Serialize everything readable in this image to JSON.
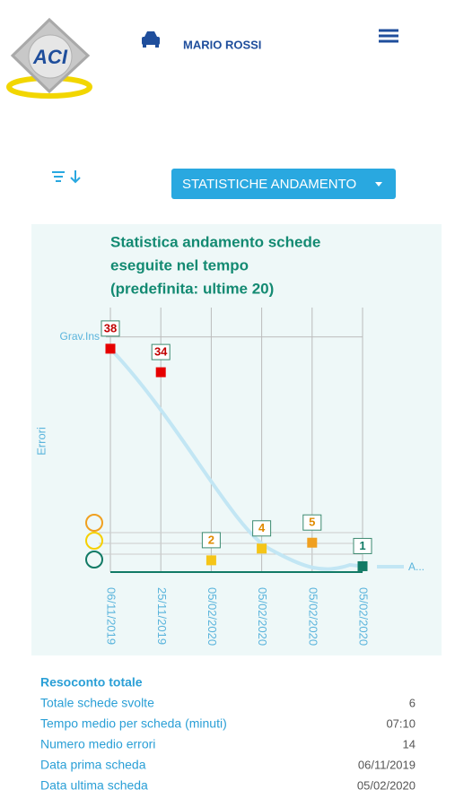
{
  "header": {
    "user": "MARIO ROSSI"
  },
  "dropdown": {
    "label": "STATISTICHE ANDAMENTO"
  },
  "chart_data": {
    "type": "scatter",
    "title": [
      "Statistica andamento schede",
      "eseguite nel tempo",
      "(predefinita: ultime 20)"
    ],
    "y_label": "Errori",
    "categories": [
      "06/11/2019",
      "25/11/2019",
      "05/02/2020",
      "05/02/2020",
      "05/02/2020",
      "05/02/2020"
    ],
    "values": [
      38,
      34,
      2,
      4,
      5,
      1
    ],
    "colors": [
      "#e60000",
      "#e60000",
      "#f5c518",
      "#f5c518",
      "#f0a020",
      "#117a65"
    ],
    "label_colors": [
      "#c00000",
      "#c00000",
      "#e08a00",
      "#e08a00",
      "#e08a00",
      "#117a65"
    ],
    "ylim": [
      0,
      45
    ],
    "annotation": {
      "label": "Grav.Ins",
      "value": 40
    },
    "trend_label": "A..."
  },
  "summary": {
    "title": "Resoconto totale",
    "rows": [
      [
        "Totale schede svolte",
        "6"
      ],
      [
        "Tempo medio per scheda (minuti)",
        "07:10"
      ],
      [
        "Numero medio errori",
        "14"
      ],
      [
        "Data prima scheda",
        "06/11/2019"
      ],
      [
        "Data ultima scheda",
        "05/02/2020"
      ]
    ]
  }
}
